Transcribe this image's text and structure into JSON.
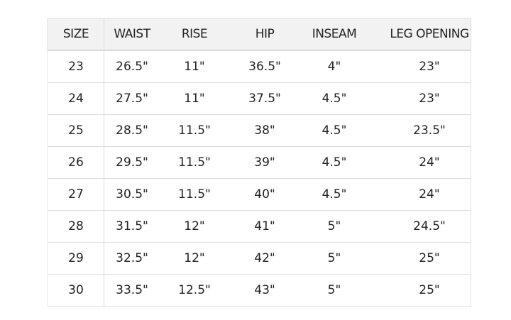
{
  "headers": [
    "SIZE",
    "WAIST",
    "RISE",
    "HIP",
    "INSEAM",
    "LEG OPENING"
  ],
  "rows": [
    [
      "23",
      "26.5\"",
      "11\"",
      "36.5\"",
      "4\"",
      "23\""
    ],
    [
      "24",
      "27.5\"",
      "11\"",
      "37.5\"",
      "4.5\"",
      "23\""
    ],
    [
      "25",
      "28.5\"",
      "11.5\"",
      "38\"",
      "4.5\"",
      "23.5\""
    ],
    [
      "26",
      "29.5\"",
      "11.5\"",
      "39\"",
      "4.5\"",
      "24\""
    ],
    [
      "27",
      "30.5\"",
      "11.5\"",
      "40\"",
      "4.5\"",
      "24\""
    ],
    [
      "28",
      "31.5\"",
      "12\"",
      "41\"",
      "5\"",
      "24.5\""
    ],
    [
      "29",
      "32.5\"",
      "12\"",
      "42\"",
      "5\"",
      "25\""
    ],
    [
      "30",
      "33.5\"",
      "12.5\"",
      "43\"",
      "5\"",
      "25\""
    ]
  ],
  "colors": {
    "header_bg": "#f2f2f2",
    "border": "#dcdcdc",
    "text": "#222222"
  }
}
